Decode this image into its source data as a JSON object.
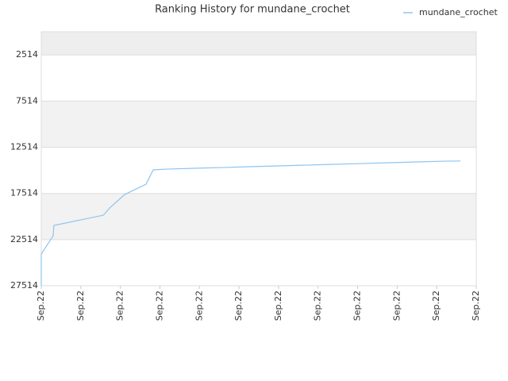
{
  "chart_data": {
    "type": "line",
    "title": "Ranking History for mundane_crochet",
    "x": [
      0,
      0,
      0.3,
      0.32,
      1.57,
      1.73,
      2.11,
      2.65,
      2.83,
      3.17,
      3.87,
      4.58,
      5.28,
      5.98,
      6.68,
      7.39,
      8.09,
      8.79,
      9.49,
      10.2,
      10.6
    ],
    "series": [
      {
        "name": "mundane_crochet",
        "color": "#8ec4f0",
        "values": [
          27514,
          24080,
          22100,
          20980,
          19870,
          19090,
          17630,
          16510,
          14960,
          14880,
          14790,
          14710,
          14620,
          14530,
          14450,
          14360,
          14280,
          14190,
          14100,
          14020,
          14000
        ]
      }
    ],
    "xlim": [
      0,
      11
    ],
    "xticks": [
      {
        "value": 0,
        "label": "Sep.22"
      },
      {
        "value": 1,
        "label": "Sep.22"
      },
      {
        "value": 2,
        "label": "Sep.22"
      },
      {
        "value": 3,
        "label": "Sep.22"
      },
      {
        "value": 4,
        "label": "Sep.22"
      },
      {
        "value": 5,
        "label": "Sep.22"
      },
      {
        "value": 6,
        "label": "Sep.22"
      },
      {
        "value": 7,
        "label": "Sep.22"
      },
      {
        "value": 8,
        "label": "Sep.22"
      },
      {
        "value": 9,
        "label": "Sep.22"
      },
      {
        "value": 10,
        "label": "Sep.22"
      },
      {
        "value": 11,
        "label": "Sep.22"
      }
    ],
    "ylim": [
      27514,
      0
    ],
    "yticks": [
      2514,
      7514,
      12514,
      17514,
      22514,
      27514
    ],
    "grid": true,
    "legend": "top-right"
  }
}
